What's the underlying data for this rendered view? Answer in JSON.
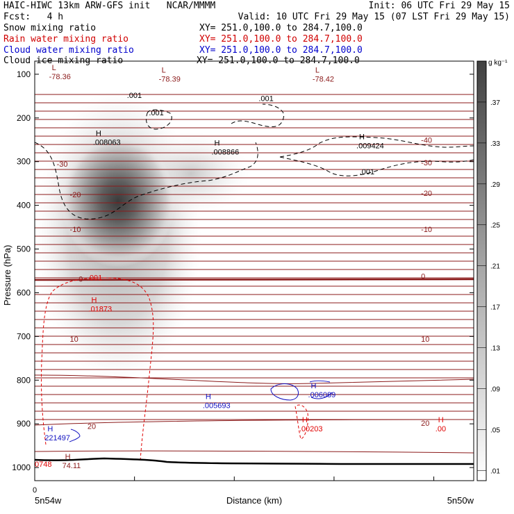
{
  "header": {
    "model_line": "HAIC-HIWC 13km ARW-GFS init   NCAR/MMMM",
    "init_line": "Init: 06 UTC Fri 29 May 15",
    "fcst_line": "Fcst:   4 h",
    "valid_line": "Valid: 10 UTC Fri 29 May 15 (07 LST Fri 29 May 15)"
  },
  "legend": {
    "snow": {
      "label": "Snow mixing ratio",
      "xy": "XY= 251.0,100.0 to 284.7,100.0",
      "color": "#000000"
    },
    "rain": {
      "label": "Rain water mixing ratio",
      "xy": "XY= 251.0,100.0 to 284.7,100.0",
      "color": "#d00000"
    },
    "cloud_water": {
      "label": "Cloud water mixing ratio",
      "xy": "XY= 251.0,100.0 to 284.7,100.0",
      "color": "#0000cc"
    },
    "cloud_ice": {
      "label": "Cloud ice mixing ratio",
      "xy": "XY= 251.0,100.0 to 284.7,100.0",
      "color": "#000000"
    }
  },
  "colors": {
    "temperature": "#8b1a1a",
    "rain": "#e00000",
    "cloud_water": "#1010c0",
    "ice": "#000000",
    "terrain": "#000000"
  },
  "chart_data": {
    "type": "cross-section",
    "ylabel": "Pressure (hPa)",
    "xlabel": "Distance (km)",
    "x_tick_labels": [
      "0"
    ],
    "x_range": [
      0,
      1
    ],
    "x_endpoints": {
      "left": "5n54w",
      "right": "5n50w"
    },
    "ylim": [
      1030,
      70
    ],
    "y_ticks": [
      100,
      200,
      300,
      400,
      500,
      600,
      700,
      800,
      900,
      1000
    ],
    "colorbar": {
      "unit": "g kg⁻¹",
      "ticks": [
        ".01",
        ".05",
        ".09",
        ".13",
        ".17",
        ".21",
        ".25",
        ".29",
        ".33",
        ".37"
      ],
      "values": [
        0.01,
        0.05,
        0.09,
        0.13,
        0.17,
        0.21,
        0.25,
        0.29,
        0.33,
        0.37
      ],
      "vmin": 0.0,
      "vmax": 0.41
    },
    "snow_maximum": {
      "x": 0.2,
      "p": 375,
      "value": 0.41
    },
    "temperature_labels": [
      {
        "text": "-40",
        "x": 0.88,
        "p": 250
      },
      {
        "text": "-30",
        "x": 0.05,
        "p": 305
      },
      {
        "text": "-30",
        "x": 0.88,
        "p": 302
      },
      {
        "text": "-20",
        "x": 0.08,
        "p": 375
      },
      {
        "text": "-20",
        "x": 0.88,
        "p": 372
      },
      {
        "text": "-10",
        "x": 0.08,
        "p": 455
      },
      {
        "text": "-10",
        "x": 0.88,
        "p": 455
      },
      {
        "text": "0",
        "x": 0.1,
        "p": 568
      },
      {
        "text": "0",
        "x": 0.88,
        "p": 562
      },
      {
        "text": "10",
        "x": 0.08,
        "p": 706
      },
      {
        "text": "10",
        "x": 0.88,
        "p": 706
      },
      {
        "text": "20",
        "x": 0.12,
        "p": 905
      },
      {
        "text": "20",
        "x": 0.88,
        "p": 898
      }
    ],
    "extrema": [
      {
        "kind": "L",
        "value": "-78.36",
        "x": 0.02,
        "p": 100,
        "color": "temperature"
      },
      {
        "kind": "L",
        "value": "-78.39",
        "x": 0.27,
        "p": 106,
        "color": "temperature"
      },
      {
        "kind": "L",
        "value": "-78.42",
        "x": 0.62,
        "p": 106,
        "color": "temperature"
      },
      {
        "kind": "H",
        "value": ".008063",
        "x": 0.12,
        "p": 250,
        "color": "ice"
      },
      {
        "kind": "H",
        "value": ".008866",
        "x": 0.39,
        "p": 273,
        "color": "ice"
      },
      {
        "kind": "H",
        "value": ".009424",
        "x": 0.72,
        "p": 258,
        "color": "ice"
      },
      {
        "kind": "H",
        "value": ".01873",
        "x": 0.11,
        "p": 632,
        "color": "rain"
      },
      {
        "kind": "H",
        "value": ".005693",
        "x": 0.37,
        "p": 853,
        "color": "cloud_water"
      },
      {
        "kind": "H",
        "value": ".006089",
        "x": 0.61,
        "p": 828,
        "color": "cloud_water"
      },
      {
        "kind": "H",
        "value": ".00203",
        "x": 0.59,
        "p": 906,
        "color": "rain"
      },
      {
        "kind": "H",
        "value": ".00",
        "x": 0.9,
        "p": 906,
        "color": "rain"
      },
      {
        "kind": "H",
        "value": "221497",
        "x": 0.01,
        "p": 927,
        "color": "cloud_water"
      },
      {
        "kind": "H",
        "value": "74.11",
        "x": 0.05,
        "p": 990,
        "color": "temperature"
      }
    ],
    "contour_labels": [
      {
        "text": ".001",
        "x": 0.21,
        "p": 148,
        "color": "ice"
      },
      {
        "text": ".001",
        "x": 0.26,
        "p": 188,
        "color": "ice"
      },
      {
        "text": ".001",
        "x": 0.51,
        "p": 155,
        "color": "ice"
      },
      {
        "text": ".001",
        "x": 0.74,
        "p": 323,
        "color": "ice"
      },
      {
        "text": ".001",
        "x": 0.12,
        "p": 565,
        "color": "rain"
      },
      {
        "text": "0748",
        "x": 0.0,
        "p": 992,
        "color": "rain"
      }
    ]
  }
}
